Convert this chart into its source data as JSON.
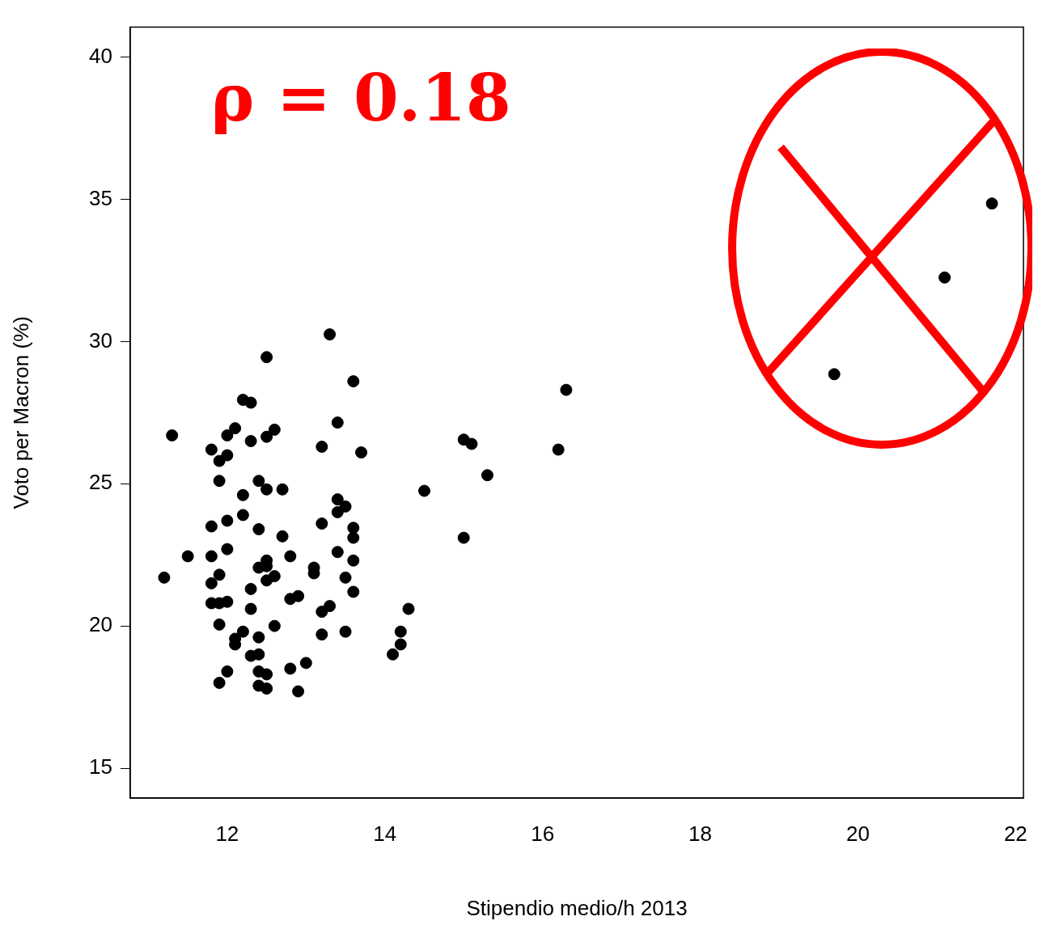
{
  "chart_data": {
    "type": "scatter",
    "xlabel": "Stipendio medio/h 2013",
    "ylabel": "Voto per Macron (%)",
    "annotations": [
      "ρ = 0.18"
    ],
    "xlim": [
      10.77,
      22.1
    ],
    "ylim": [
      13.95,
      41.05
    ],
    "xticks": [
      12,
      14,
      16,
      18,
      20,
      22
    ],
    "yticks": [
      15,
      20,
      25,
      30,
      35,
      40
    ],
    "marker": "circle",
    "legend": false,
    "series": [
      {
        "color": "#000000",
        "x": [
          11.2,
          11.3,
          11.5,
          11.8,
          11.8,
          11.8,
          11.8,
          11.8,
          11.9,
          11.9,
          11.9,
          11.9,
          11.9,
          11.9,
          12.0,
          12.0,
          12.0,
          12.0,
          12.0,
          12.0,
          12.1,
          12.1,
          12.1,
          12.2,
          12.2,
          12.2,
          12.2,
          12.3,
          12.3,
          12.3,
          12.3,
          12.3,
          12.4,
          12.4,
          12.4,
          12.4,
          12.4,
          12.4,
          12.4,
          12.5,
          12.5,
          12.5,
          12.5,
          12.5,
          12.5,
          12.5,
          12.5,
          12.6,
          12.6,
          12.6,
          12.7,
          12.7,
          12.8,
          12.8,
          12.8,
          12.9,
          12.9,
          13.0,
          13.1,
          13.1,
          13.2,
          13.2,
          13.2,
          13.2,
          13.3,
          13.3,
          13.4,
          13.4,
          13.4,
          13.4,
          13.5,
          13.5,
          13.5,
          13.6,
          13.6,
          13.6,
          13.6,
          13.6,
          13.7,
          14.1,
          14.2,
          14.2,
          14.3,
          14.5,
          15.0,
          15.1,
          15.0,
          15.3,
          16.2,
          16.3,
          19.7,
          21.1,
          21.7
        ],
        "values": [
          21.7,
          26.7,
          22.45,
          26.2,
          23.5,
          22.45,
          21.5,
          20.8,
          25.8,
          25.1,
          21.8,
          20.8,
          20.05,
          18.0,
          26.7,
          26.0,
          23.7,
          22.7,
          20.85,
          18.4,
          26.95,
          19.55,
          19.35,
          27.95,
          24.6,
          23.9,
          19.8,
          27.85,
          26.5,
          21.3,
          20.6,
          18.95,
          25.1,
          23.4,
          22.05,
          19.6,
          19.0,
          18.4,
          17.9,
          29.45,
          26.65,
          24.8,
          22.3,
          22.1,
          21.6,
          18.3,
          17.8,
          26.9,
          21.75,
          20.0,
          24.8,
          23.15,
          22.45,
          20.95,
          18.5,
          21.05,
          17.7,
          18.7,
          22.05,
          21.85,
          26.3,
          23.6,
          20.5,
          19.7,
          30.25,
          20.7,
          27.15,
          24.45,
          24.0,
          22.6,
          24.2,
          21.7,
          19.8,
          28.6,
          23.45,
          23.1,
          22.3,
          21.2,
          26.1,
          19.0,
          19.8,
          19.35,
          20.6,
          24.75,
          26.55,
          26.4,
          23.1,
          25.3,
          26.2,
          28.3,
          28.85,
          32.25,
          34.85
        ]
      }
    ]
  }
}
